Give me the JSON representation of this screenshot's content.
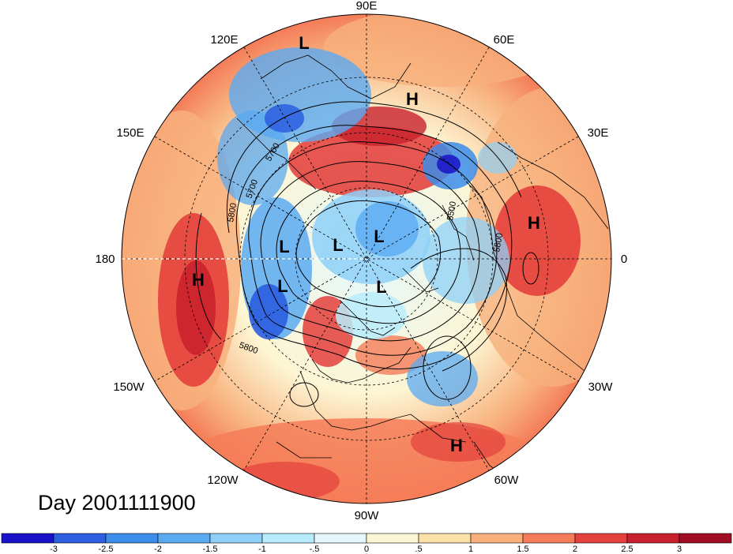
{
  "map": {
    "projection": "polar stereographic (north pole)",
    "day_label": "Day 2001111900",
    "longitude_labels": {
      "e90": "90E",
      "e60": "60E",
      "e30": "30E",
      "zero": "0",
      "w30": "30W",
      "w60": "60W",
      "w90": "90W",
      "w120": "120W",
      "w150": "150W",
      "lon180": "180",
      "e150": "150E",
      "e120": "120E"
    },
    "pressure_centers": [
      {
        "symbol": "L"
      },
      {
        "symbol": "H"
      },
      {
        "symbol": "H"
      },
      {
        "symbol": "H"
      },
      {
        "symbol": "H"
      },
      {
        "symbol": "L"
      },
      {
        "symbol": "L"
      },
      {
        "symbol": "L"
      },
      {
        "symbol": "L"
      },
      {
        "symbol": "L"
      }
    ],
    "contour_labels": [
      "5800",
      "5700",
      "5700",
      "5500",
      "5800",
      "5800"
    ]
  },
  "colorbar": {
    "ticks": [
      "-3",
      "-2.5",
      "-2",
      "-1.5",
      "-1",
      "-.5",
      "0",
      ".5",
      "1",
      "1.5",
      "2",
      "2.5",
      "3"
    ],
    "colors": [
      "#1a12c8",
      "#2c5ee0",
      "#3c8cea",
      "#5aaaf2",
      "#8ed0f8",
      "#b8ecfc",
      "#e4f8fc",
      "#fdf6d4",
      "#fbe0a8",
      "#f8b07c",
      "#f47c58",
      "#e4403c",
      "#c8202c",
      "#a00c24"
    ]
  }
}
